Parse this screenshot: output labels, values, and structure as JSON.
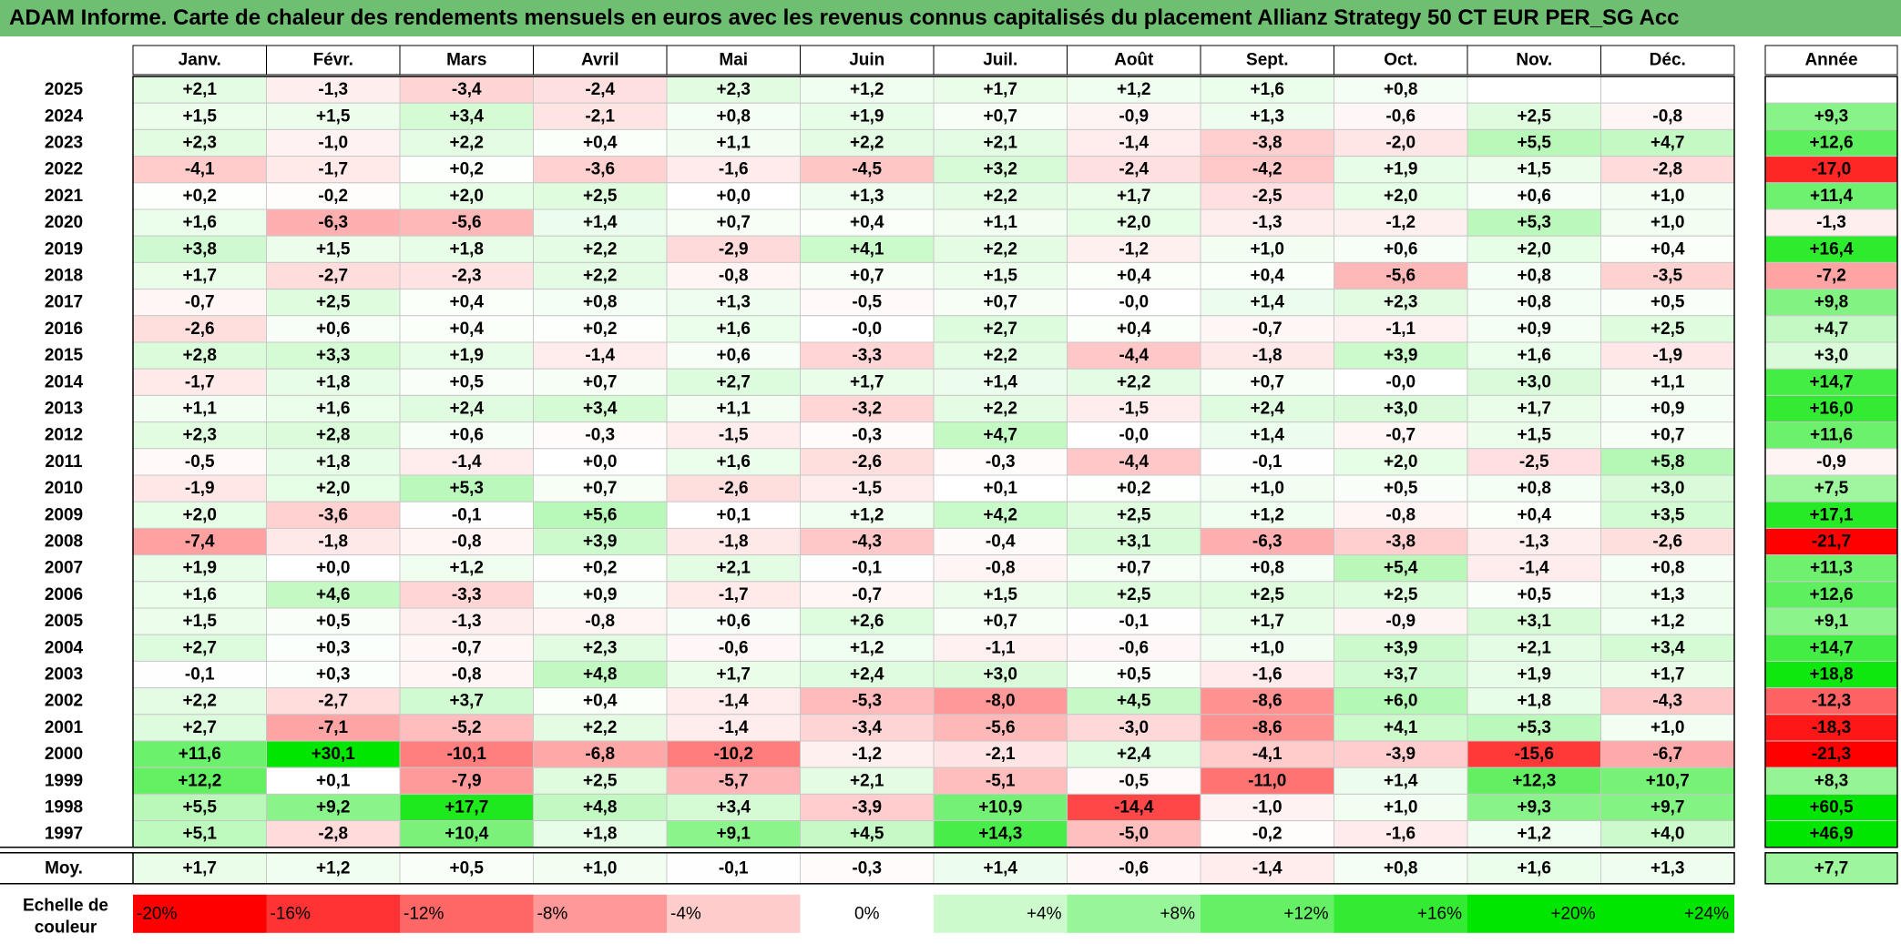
{
  "title": "ADAM Informe. Carte de chaleur des rendements mensuels en euros avec les revenus connus capitalisés du placement Allianz Strategy 50 CT EUR PER_SG Acc",
  "chart_data": {
    "type": "heatmap",
    "months": [
      "Janv.",
      "Févr.",
      "Mars",
      "Avril",
      "Mai",
      "Juin",
      "Juil.",
      "Août",
      "Sept.",
      "Oct.",
      "Nov.",
      "Déc."
    ],
    "year_header": "Année",
    "rows": [
      {
        "label": "2025",
        "values": [
          "+2,1",
          "-1,3",
          "-3,4",
          "-2,4",
          "+2,3",
          "+1,2",
          "+1,7",
          "+1,2",
          "+1,6",
          "+0,8",
          "",
          ""
        ],
        "year": ""
      },
      {
        "label": "2024",
        "values": [
          "+1,5",
          "+1,5",
          "+3,4",
          "-2,1",
          "+0,8",
          "+1,9",
          "+0,7",
          "-0,9",
          "+1,3",
          "-0,6",
          "+2,5",
          "-0,8"
        ],
        "year": "+9,3"
      },
      {
        "label": "2023",
        "values": [
          "+2,3",
          "-1,0",
          "+2,2",
          "+0,4",
          "+1,1",
          "+2,2",
          "+2,1",
          "-1,4",
          "-3,8",
          "-2,0",
          "+5,5",
          "+4,7"
        ],
        "year": "+12,6"
      },
      {
        "label": "2022",
        "values": [
          "-4,1",
          "-1,7",
          "+0,2",
          "-3,6",
          "-1,6",
          "-4,5",
          "+3,2",
          "-2,4",
          "-4,2",
          "+1,9",
          "+1,5",
          "-2,8"
        ],
        "year": "-17,0"
      },
      {
        "label": "2021",
        "values": [
          "+0,2",
          "-0,2",
          "+2,0",
          "+2,5",
          "+0,0",
          "+1,3",
          "+2,2",
          "+1,7",
          "-2,5",
          "+2,0",
          "+0,6",
          "+1,0"
        ],
        "year": "+11,4"
      },
      {
        "label": "2020",
        "values": [
          "+1,6",
          "-6,3",
          "-5,6",
          "+1,4",
          "+0,7",
          "+0,4",
          "+1,1",
          "+2,0",
          "-1,3",
          "-1,2",
          "+5,3",
          "+1,0"
        ],
        "year": "-1,3"
      },
      {
        "label": "2019",
        "values": [
          "+3,8",
          "+1,5",
          "+1,8",
          "+2,2",
          "-2,9",
          "+4,1",
          "+2,2",
          "-1,2",
          "+1,0",
          "+0,6",
          "+2,0",
          "+0,4"
        ],
        "year": "+16,4"
      },
      {
        "label": "2018",
        "values": [
          "+1,7",
          "-2,7",
          "-2,3",
          "+2,2",
          "-0,8",
          "+0,7",
          "+1,5",
          "+0,4",
          "+0,4",
          "-5,6",
          "+0,8",
          "-3,5"
        ],
        "year": "-7,2"
      },
      {
        "label": "2017",
        "values": [
          "-0,7",
          "+2,5",
          "+0,4",
          "+0,8",
          "+1,3",
          "-0,5",
          "+0,7",
          "-0,0",
          "+1,4",
          "+2,3",
          "+0,8",
          "+0,5"
        ],
        "year": "+9,8"
      },
      {
        "label": "2016",
        "values": [
          "-2,6",
          "+0,6",
          "+0,4",
          "+0,2",
          "+1,6",
          "-0,0",
          "+2,7",
          "+0,4",
          "-0,7",
          "-1,1",
          "+0,9",
          "+2,5"
        ],
        "year": "+4,7"
      },
      {
        "label": "2015",
        "values": [
          "+2,8",
          "+3,3",
          "+1,9",
          "-1,4",
          "+0,6",
          "-3,3",
          "+2,2",
          "-4,4",
          "-1,8",
          "+3,9",
          "+1,6",
          "-1,9"
        ],
        "year": "+3,0"
      },
      {
        "label": "2014",
        "values": [
          "-1,7",
          "+1,8",
          "+0,5",
          "+0,7",
          "+2,7",
          "+1,7",
          "+1,4",
          "+2,2",
          "+0,7",
          "-0,0",
          "+3,0",
          "+1,1"
        ],
        "year": "+14,7"
      },
      {
        "label": "2013",
        "values": [
          "+1,1",
          "+1,6",
          "+2,4",
          "+3,4",
          "+1,1",
          "-3,2",
          "+2,2",
          "-1,5",
          "+2,4",
          "+3,0",
          "+1,7",
          "+0,9"
        ],
        "year": "+16,0"
      },
      {
        "label": "2012",
        "values": [
          "+2,3",
          "+2,8",
          "+0,6",
          "-0,3",
          "-1,5",
          "-0,3",
          "+4,7",
          "-0,0",
          "+1,4",
          "-0,7",
          "+1,5",
          "+0,7"
        ],
        "year": "+11,6"
      },
      {
        "label": "2011",
        "values": [
          "-0,5",
          "+1,8",
          "-1,4",
          "+0,0",
          "+1,6",
          "-2,6",
          "-0,3",
          "-4,4",
          "-0,1",
          "+2,0",
          "-2,5",
          "+5,8"
        ],
        "year": "-0,9"
      },
      {
        "label": "2010",
        "values": [
          "-1,9",
          "+2,0",
          "+5,3",
          "+0,7",
          "-2,6",
          "-1,5",
          "+0,1",
          "+0,2",
          "+1,0",
          "+0,5",
          "+0,8",
          "+3,0"
        ],
        "year": "+7,5"
      },
      {
        "label": "2009",
        "values": [
          "+2,0",
          "-3,6",
          "-0,1",
          "+5,6",
          "+0,1",
          "+1,2",
          "+4,2",
          "+2,5",
          "+1,2",
          "-0,8",
          "+0,4",
          "+3,5"
        ],
        "year": "+17,1"
      },
      {
        "label": "2008",
        "values": [
          "-7,4",
          "-1,8",
          "-0,8",
          "+3,9",
          "-1,8",
          "-4,3",
          "-0,4",
          "+3,1",
          "-6,3",
          "-3,8",
          "-1,3",
          "-2,6"
        ],
        "year": "-21,7"
      },
      {
        "label": "2007",
        "values": [
          "+1,9",
          "+0,0",
          "+1,2",
          "+0,2",
          "+2,1",
          "-0,1",
          "-0,8",
          "+0,7",
          "+0,8",
          "+5,4",
          "-1,4",
          "+0,8"
        ],
        "year": "+11,3"
      },
      {
        "label": "2006",
        "values": [
          "+1,6",
          "+4,6",
          "-3,3",
          "+0,9",
          "-1,7",
          "-0,7",
          "+1,5",
          "+2,5",
          "+2,5",
          "+2,5",
          "+0,5",
          "+1,3"
        ],
        "year": "+12,6"
      },
      {
        "label": "2005",
        "values": [
          "+1,5",
          "+0,5",
          "-1,3",
          "-0,8",
          "+0,6",
          "+2,6",
          "+0,7",
          "-0,1",
          "+1,7",
          "-0,9",
          "+3,1",
          "+1,2"
        ],
        "year": "+9,1"
      },
      {
        "label": "2004",
        "values": [
          "+2,7",
          "+0,3",
          "-0,7",
          "+2,3",
          "-0,6",
          "+1,2",
          "-1,1",
          "-0,6",
          "+1,0",
          "+3,9",
          "+2,1",
          "+3,4"
        ],
        "year": "+14,7"
      },
      {
        "label": "2003",
        "values": [
          "-0,1",
          "+0,3",
          "-0,8",
          "+4,8",
          "+1,7",
          "+2,4",
          "+3,0",
          "+0,5",
          "-1,6",
          "+3,7",
          "+1,9",
          "+1,7"
        ],
        "year": "+18,8"
      },
      {
        "label": "2002",
        "values": [
          "+2,2",
          "-2,7",
          "+3,7",
          "+0,4",
          "-1,4",
          "-5,3",
          "-8,0",
          "+4,5",
          "-8,6",
          "+6,0",
          "+1,8",
          "-4,3"
        ],
        "year": "-12,3"
      },
      {
        "label": "2001",
        "values": [
          "+2,7",
          "-7,1",
          "-5,2",
          "+2,2",
          "-1,4",
          "-3,4",
          "-5,6",
          "-3,0",
          "-8,6",
          "+4,1",
          "+5,3",
          "+1,0"
        ],
        "year": "-18,3"
      },
      {
        "label": "2000",
        "values": [
          "+11,6",
          "+30,1",
          "-10,1",
          "-6,8",
          "-10,2",
          "-1,2",
          "-2,1",
          "+2,4",
          "-4,1",
          "-3,9",
          "-15,6",
          "-6,7"
        ],
        "year": "-21,3"
      },
      {
        "label": "1999",
        "values": [
          "+12,2",
          "+0,1",
          "-7,9",
          "+2,5",
          "-5,7",
          "+2,1",
          "-5,1",
          "-0,5",
          "-11,0",
          "+1,4",
          "+12,3",
          "+10,7"
        ],
        "year": "+8,3"
      },
      {
        "label": "1998",
        "values": [
          "+5,5",
          "+9,2",
          "+17,7",
          "+4,8",
          "+3,4",
          "-3,9",
          "+10,9",
          "-14,4",
          "-1,0",
          "+1,0",
          "+9,3",
          "+9,7"
        ],
        "year": "+60,5"
      },
      {
        "label": "1997",
        "values": [
          "+5,1",
          "-2,8",
          "+10,4",
          "+1,8",
          "+9,1",
          "+4,5",
          "+14,3",
          "-5,0",
          "-0,2",
          "-1,6",
          "+1,2",
          "+4,0"
        ],
        "year": "+46,9"
      }
    ],
    "average": {
      "label": "Moy.",
      "values": [
        "+1,7",
        "+1,2",
        "+0,5",
        "+1,0",
        "-0,1",
        "-0,3",
        "+1,4",
        "-0,6",
        "-1,4",
        "+0,8",
        "+1,6",
        "+1,3"
      ],
      "year": "+7,7"
    },
    "scale": {
      "label_line1": "Echelle de",
      "label_line2": "couleur",
      "items": [
        "-20%",
        "-16%",
        "-12%",
        "-8%",
        "-4%",
        "0%",
        "+4%",
        "+8%",
        "+12%",
        "+16%",
        "+20%",
        "+24%"
      ],
      "values": [
        -20,
        -16,
        -12,
        -8,
        -4,
        0,
        4,
        8,
        12,
        16,
        20,
        24
      ]
    }
  }
}
